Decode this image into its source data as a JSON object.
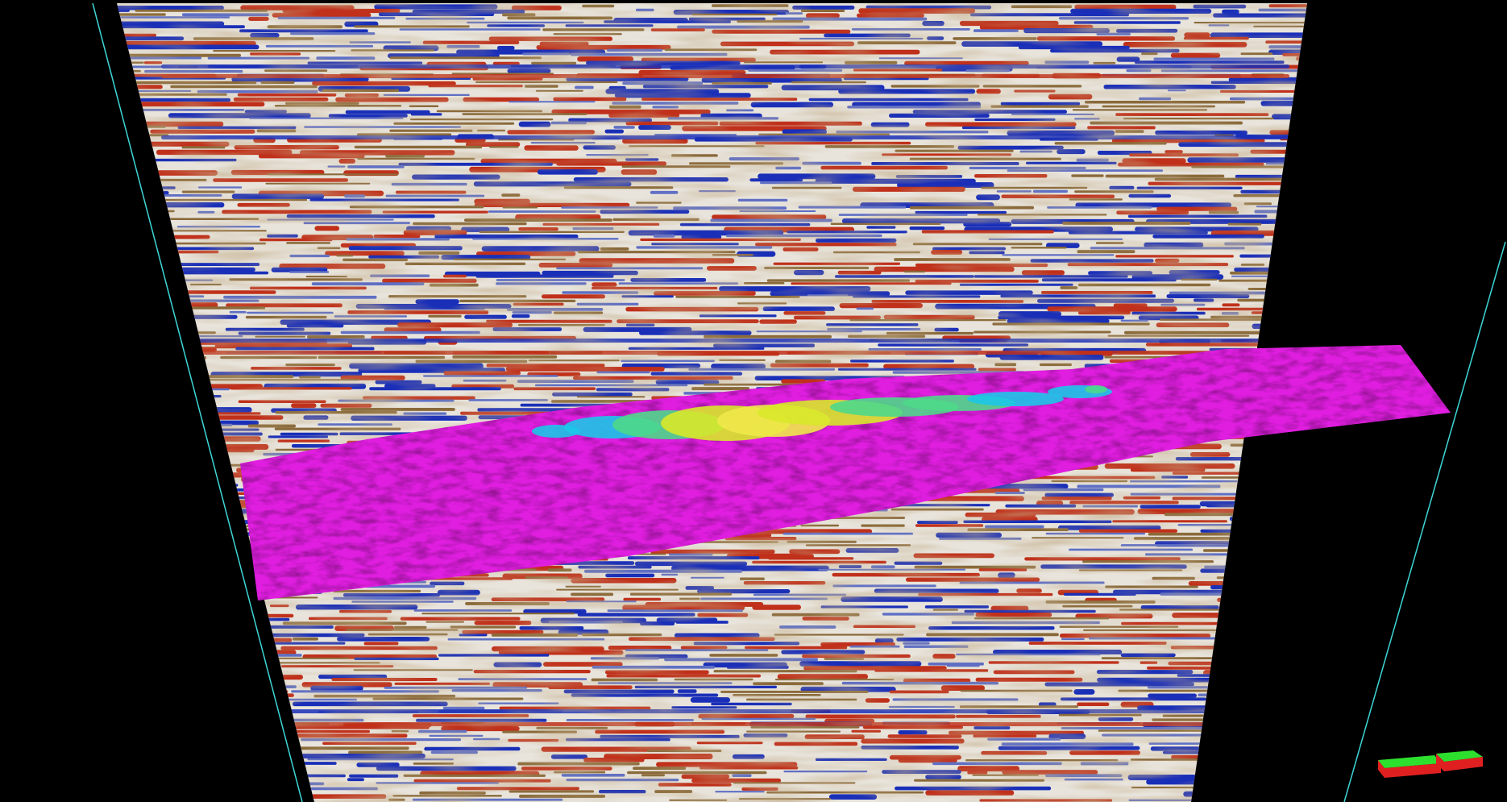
{
  "viewer": {
    "background_color": "#000000",
    "bounding_box_color": "#3fd6d6"
  },
  "seismic_section": {
    "colormap": [
      "#1a2fb8",
      "#5f6fc4",
      "#c8c6c0",
      "#e8e4dc",
      "#8a6a3a",
      "#c0301a"
    ]
  },
  "horizon_surface": {
    "base_color": "#e01ee0",
    "amplitude_anomaly_colors": [
      "#1cc6e8",
      "#4ed88a",
      "#d8e82a",
      "#f0e84a"
    ]
  },
  "orientation_widget": {
    "icon": "orientation-cube-icon",
    "top_color": "#2ee02e",
    "side_color": "#e02020"
  }
}
